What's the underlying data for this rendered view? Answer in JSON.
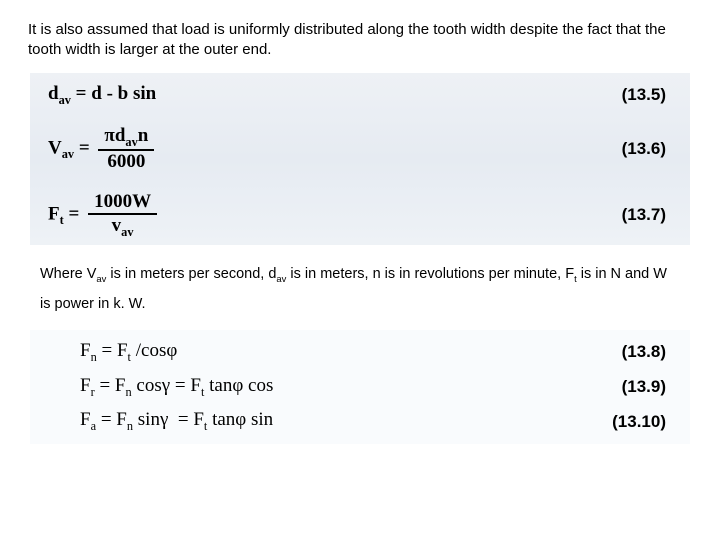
{
  "intro": "It is also assumed that load is uniformly distributed along the tooth width despite the fact that the tooth width is larger at the outer end.",
  "block1": {
    "eq1": {
      "lhs": "d",
      "lhs_sub": "av",
      "rhs": " = d - b sin",
      "num": "(13.5)"
    },
    "eq2": {
      "lhs": "V",
      "lhs_sub": "av",
      "eq": " = ",
      "frac_num_a": "πd",
      "frac_num_sub": "av",
      "frac_num_b": "n",
      "frac_den": "6000",
      "num": "(13.6)"
    },
    "eq3": {
      "lhs": "F",
      "lhs_sub": "t",
      "eq": " = ",
      "frac_num": "1000W",
      "frac_den_a": "v",
      "frac_den_sub": "av",
      "num": "(13.7)"
    }
  },
  "desc_a": "Where V",
  "desc_b": " is in meters per second, d",
  "desc_c": " is in meters, n is in revolutions per minute, F",
  "desc_d": " is in N and W is power in k. W.",
  "sub_av": "av",
  "sub_t": "t",
  "block2": {
    "eq1": {
      "txt": "Fₙ = F_t /cosφ",
      "num": "(13.8)"
    },
    "eq2": {
      "txt": "F_r = Fₙ cosγ = F_t tanφ cos",
      "num": "(13.9)"
    },
    "eq3": {
      "txt": "Fₐ = Fₙ sinγ  = F_t tanφ sin",
      "num": "(13.10)"
    }
  }
}
